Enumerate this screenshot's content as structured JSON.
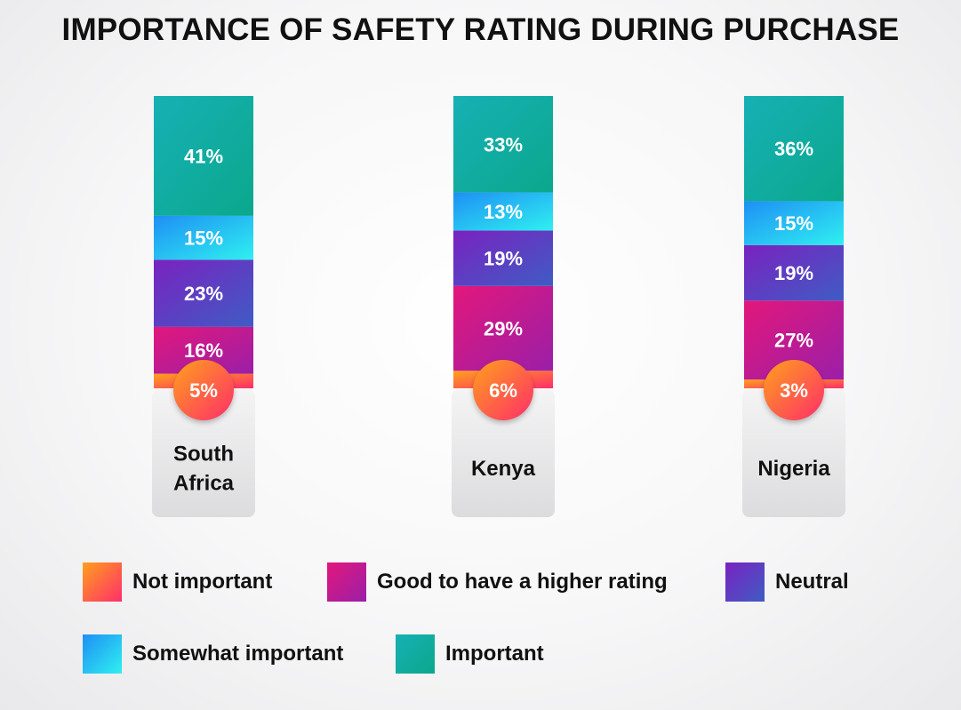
{
  "title": "IMPORTANCE OF SAFETY RATING DURING PURCHASE",
  "colors": {
    "not_important": [
      "#ffa01c",
      "#ff2e6a"
    ],
    "good_to_have": [
      "#e3177b",
      "#9a1fa8"
    ],
    "neutral": [
      "#7a22c0",
      "#3f5cc4"
    ],
    "somewhat_important": [
      "#1e8ff5",
      "#2ff0f0"
    ],
    "important": [
      "#17b0b5",
      "#0ba88c"
    ]
  },
  "legend": [
    {
      "key": "not_important",
      "label": "Not important"
    },
    {
      "key": "good_to_have",
      "label": "Good to have a higher rating"
    },
    {
      "key": "neutral",
      "label": "Neutral"
    },
    {
      "key": "somewhat_important",
      "label": "Somewhat important"
    },
    {
      "key": "important",
      "label": "Important"
    }
  ],
  "chart_data": {
    "type": "bar",
    "stacked": true,
    "title": "IMPORTANCE OF SAFETY RATING DURING PURCHASE",
    "categories": [
      "South Africa",
      "Kenya",
      "Nigeria"
    ],
    "category_lines": [
      [
        "South",
        "Africa"
      ],
      [
        "Kenya"
      ],
      [
        "Nigeria"
      ]
    ],
    "series": [
      {
        "key": "not_important",
        "name": "Not important",
        "values": [
          5,
          6,
          3
        ],
        "labels": [
          "5%",
          "6%",
          "3%"
        ]
      },
      {
        "key": "good_to_have",
        "name": "Good to have a higher rating",
        "values": [
          16,
          29,
          27
        ],
        "labels": [
          "16%",
          "29%",
          "27%"
        ]
      },
      {
        "key": "neutral",
        "name": "Neutral",
        "values": [
          23,
          19,
          19
        ],
        "labels": [
          "23%",
          "19%",
          "19%"
        ]
      },
      {
        "key": "somewhat_important",
        "name": "Somewhat important",
        "values": [
          15,
          13,
          15
        ],
        "labels": [
          "15%",
          "13%",
          "15%"
        ]
      },
      {
        "key": "important",
        "name": "Important",
        "values": [
          41,
          33,
          36
        ],
        "labels": [
          "41%",
          "33%",
          "36%"
        ]
      }
    ],
    "ylim": [
      0,
      100
    ],
    "unit": "%"
  }
}
